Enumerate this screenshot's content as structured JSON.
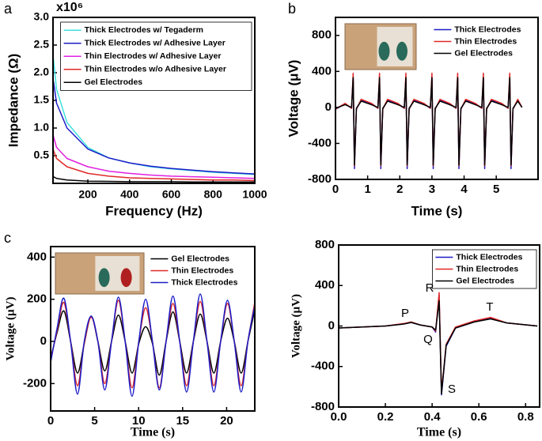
{
  "chart_data": [
    {
      "type": "line",
      "panel_label": "a",
      "multiplier": "x10⁶",
      "xlabel": "Frequency (Hz)",
      "ylabel": "Impedance (Ω)",
      "x": [
        35,
        50,
        100,
        200,
        300,
        400,
        500,
        600,
        700,
        800,
        900,
        1000
      ],
      "series": [
        {
          "name": "Thick Electrodes w/ Tegaderm",
          "color": "#3fe0e0",
          "values": [
            2.25,
            1.7,
            1.1,
            0.65,
            0.46,
            0.37,
            0.3,
            0.26,
            0.23,
            0.2,
            0.18,
            0.16
          ]
        },
        {
          "name": "Thick Electrodes w/ Adhesive Layer",
          "color": "#1c1cc8",
          "values": [
            1.85,
            1.45,
            1.0,
            0.62,
            0.46,
            0.37,
            0.31,
            0.27,
            0.24,
            0.21,
            0.19,
            0.17
          ]
        },
        {
          "name": "Thin Electrodes w/ Adhesive Layer",
          "color": "#e020e0",
          "values": [
            0.85,
            0.65,
            0.45,
            0.3,
            0.22,
            0.18,
            0.15,
            0.13,
            0.12,
            0.11,
            0.1,
            0.09
          ]
        },
        {
          "name": "Thin Electrodes w/o Adhesive Layer",
          "color": "#e02828",
          "values": [
            0.6,
            0.45,
            0.3,
            0.18,
            0.13,
            0.1,
            0.09,
            0.08,
            0.07,
            0.06,
            0.06,
            0.05
          ]
        },
        {
          "name": "Gel Electrodes",
          "color": "#000000",
          "values": [
            0.12,
            0.09,
            0.06,
            0.04,
            0.035,
            0.03,
            0.03,
            0.03,
            0.025,
            0.025,
            0.025,
            0.025
          ]
        }
      ],
      "xlim": [
        33,
        1000
      ],
      "ylim": [
        0,
        3.0
      ],
      "xticks": [
        200,
        400,
        600,
        800,
        1000
      ],
      "yticks": [
        0.5,
        {
          "value": 1,
          "label": "1.0"
        },
        1.5,
        {
          "value": 2,
          "label": "2.0"
        },
        2.5,
        {
          "value": 3,
          "label": "3.0"
        }
      ],
      "legend": "upper right"
    },
    {
      "type": "line",
      "panel_label": "b",
      "xlabel": "Time (s)",
      "ylabel": "Voltage (μV)",
      "x": [
        0,
        0.3,
        0.5,
        0.55,
        0.59,
        0.65,
        0.8,
        1.12,
        1.32,
        1.37,
        1.41,
        1.47,
        1.62,
        1.94,
        2.14,
        2.19,
        2.23,
        2.29,
        2.44,
        2.75,
        2.95,
        3.0,
        3.04,
        3.1,
        3.25,
        3.55,
        3.75,
        3.8,
        3.84,
        3.9,
        4.05,
        4.35,
        4.55,
        4.6,
        4.64,
        4.7,
        4.85,
        5.17,
        5.37,
        5.42,
        5.46,
        5.52,
        5.67,
        5.8
      ],
      "series": [
        {
          "name": "Thick Electrodes",
          "color": "#1c1cc8",
          "values": [
            -20,
            40,
            -10,
            330,
            -680,
            -20,
            80,
            40,
            -10,
            330,
            -680,
            -20,
            80,
            40,
            -10,
            330,
            -680,
            -20,
            80,
            40,
            -10,
            330,
            -680,
            -20,
            80,
            40,
            -10,
            330,
            -680,
            -20,
            80,
            40,
            -10,
            330,
            -680,
            -20,
            80,
            40,
            -10,
            330,
            -680,
            -20,
            80,
            0
          ]
        },
        {
          "name": "Thin Electrodes",
          "color": "#e02828",
          "values": [
            -20,
            45,
            -10,
            380,
            -650,
            -20,
            90,
            45,
            -10,
            380,
            -650,
            -20,
            90,
            45,
            -10,
            380,
            -650,
            -20,
            90,
            45,
            -10,
            380,
            -650,
            -20,
            90,
            45,
            -10,
            380,
            -650,
            -20,
            90,
            45,
            -10,
            380,
            -650,
            -20,
            90,
            45,
            -10,
            380,
            -650,
            -20,
            90,
            0
          ]
        },
        {
          "name": "Gel Electrodes",
          "color": "#000000",
          "values": [
            -10,
            30,
            0,
            330,
            -640,
            -10,
            70,
            30,
            0,
            330,
            -640,
            -10,
            70,
            30,
            0,
            330,
            -640,
            -10,
            70,
            30,
            0,
            330,
            -640,
            -10,
            70,
            30,
            0,
            330,
            -640,
            -10,
            70,
            30,
            0,
            330,
            -640,
            -10,
            70,
            30,
            0,
            330,
            -640,
            -10,
            70,
            0
          ]
        }
      ],
      "xlim": [
        0,
        6.3
      ],
      "ylim": [
        -800,
        1000
      ],
      "xticks": [
        0,
        1,
        2,
        3,
        4,
        5
      ],
      "yticks": [
        -800,
        -400,
        0,
        400,
        800
      ],
      "legend": "upper right"
    },
    {
      "type": "line",
      "panel_label": "c",
      "xlabel": "Time (s)",
      "ylabel": "Voltage (µV)",
      "smooth": true,
      "x": [
        0,
        0.72,
        1.5,
        2.27,
        3.05,
        3.82,
        4.6,
        5.37,
        6.15,
        6.92,
        7.7,
        8.47,
        9.25,
        10.02,
        10.8,
        11.57,
        12.35,
        13.12,
        13.9,
        14.67,
        15.45,
        16.22,
        17.0,
        17.77,
        18.55,
        19.32,
        20.1,
        20.87,
        21.65,
        22.42,
        23.2
      ],
      "series": [
        {
          "name": "Gel Electrodes",
          "color": "#000000",
          "values": [
            -80,
            40,
            145,
            0,
            -150,
            -10,
            120,
            0,
            -140,
            0,
            125,
            0,
            -150,
            -10,
            70,
            -10,
            -160,
            0,
            140,
            0,
            -150,
            0,
            130,
            0,
            -150,
            0,
            110,
            0,
            -150,
            0,
            150
          ]
        },
        {
          "name": "Thin Electrodes",
          "color": "#e02828",
          "values": [
            -90,
            50,
            185,
            0,
            -210,
            -10,
            115,
            0,
            -200,
            0,
            195,
            0,
            -220,
            0,
            160,
            0,
            -220,
            0,
            180,
            0,
            -210,
            0,
            190,
            0,
            -210,
            0,
            180,
            0,
            -210,
            0,
            185
          ]
        },
        {
          "name": "Thick Electrodes",
          "color": "#1c1cc8",
          "values": [
            -100,
            60,
            205,
            0,
            -250,
            0,
            120,
            0,
            -230,
            0,
            210,
            0,
            -260,
            0,
            200,
            0,
            -230,
            0,
            215,
            0,
            -240,
            0,
            225,
            0,
            -240,
            0,
            195,
            0,
            -240,
            0,
            170
          ]
        }
      ],
      "xlim": [
        0,
        23.2
      ],
      "ylim": [
        -330,
        450
      ],
      "xticks": [
        0,
        5,
        10,
        15,
        20
      ],
      "yticks": [
        -200,
        0,
        200,
        400
      ],
      "legend": "upper right"
    },
    {
      "type": "line",
      "xlabel": "Time (s)",
      "ylabel": "Voltage (µV)",
      "annotations": [
        "P",
        "Q",
        "R",
        "S",
        "T"
      ],
      "x": [
        0,
        0.1,
        0.2,
        0.28,
        0.31,
        0.35,
        0.4,
        0.415,
        0.43,
        0.44,
        0.46,
        0.5,
        0.58,
        0.65,
        0.72,
        0.85
      ],
      "series": [
        {
          "name": "Thick Electrodes",
          "color": "#1c1cc8",
          "values": [
            -20,
            -10,
            0,
            20,
            35,
            10,
            -10,
            -60,
            300,
            -680,
            -200,
            -20,
            40,
            75,
            30,
            0
          ]
        },
        {
          "name": "Thin Electrodes",
          "color": "#e02828",
          "values": [
            -20,
            -10,
            0,
            25,
            40,
            10,
            -10,
            -50,
            330,
            -650,
            -180,
            -10,
            50,
            85,
            30,
            0
          ]
        },
        {
          "name": "Gel Electrodes",
          "color": "#000000",
          "values": [
            -20,
            -10,
            0,
            20,
            35,
            10,
            -10,
            -40,
            250,
            -670,
            -190,
            -20,
            40,
            70,
            30,
            0
          ]
        }
      ],
      "xlim": [
        0,
        0.86
      ],
      "ylim": [
        -800,
        800
      ],
      "xticks": [
        {
          "value": 0,
          "label": "0.0"
        },
        0.2,
        0.4,
        0.6,
        0.8
      ],
      "yticks": [
        -800,
        -400,
        0,
        400,
        800
      ],
      "legend": "upper right"
    }
  ]
}
